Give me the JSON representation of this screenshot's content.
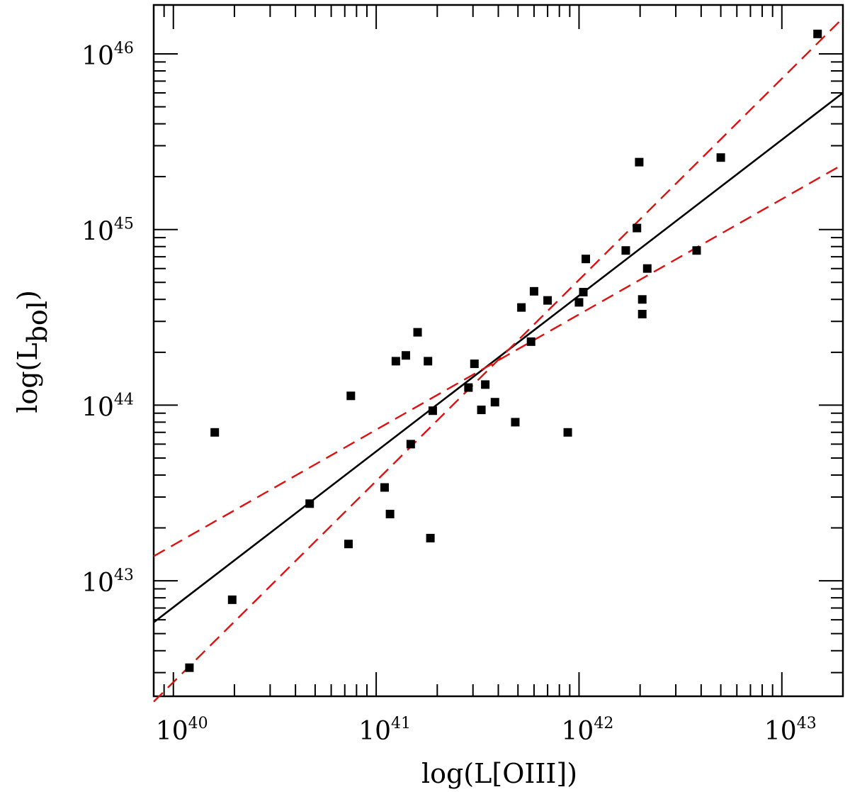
{
  "chart_data": {
    "type": "scatter",
    "title": "",
    "xlabel": "log(L[OIII])",
    "ylabel": {
      "prefix": "log(L",
      "subscript": "bol",
      "suffix": ")"
    },
    "x_scale": "log",
    "y_scale": "log",
    "xlim": [
      8e+39,
      2e+43
    ],
    "ylim": [
      2.2e+42,
      1.9e+46
    ],
    "x_ticks": [
      {
        "value": 1e+40,
        "base": "10",
        "exp": "40"
      },
      {
        "value": 1e+41,
        "base": "10",
        "exp": "41"
      },
      {
        "value": 1e+42,
        "base": "10",
        "exp": "42"
      },
      {
        "value": 1e+43,
        "base": "10",
        "exp": "43"
      }
    ],
    "y_ticks": [
      {
        "value": 1e+43,
        "base": "10",
        "exp": "43"
      },
      {
        "value": 1e+44,
        "base": "10",
        "exp": "44"
      },
      {
        "value": 1e+45,
        "base": "10",
        "exp": "45"
      },
      {
        "value": 1e+46,
        "base": "10",
        "exp": "46"
      }
    ],
    "grid": false,
    "points": [
      {
        "x": 1.2e+40,
        "y": 3.2e+42
      },
      {
        "x": 1.6e+40,
        "y": 7e+43
      },
      {
        "x": 1.95e+40,
        "y": 7.8e+42
      },
      {
        "x": 4.7e+40,
        "y": 2.75e+43
      },
      {
        "x": 7.3e+40,
        "y": 1.62e+43
      },
      {
        "x": 7.5e+40,
        "y": 1.13e+44
      },
      {
        "x": 1.1e+41,
        "y": 3.4e+43
      },
      {
        "x": 1.17e+41,
        "y": 2.4e+43
      },
      {
        "x": 1.25e+41,
        "y": 1.78e+44
      },
      {
        "x": 1.4e+41,
        "y": 1.92e+44
      },
      {
        "x": 1.48e+41,
        "y": 6e+43
      },
      {
        "x": 1.6e+41,
        "y": 2.6e+44
      },
      {
        "x": 1.8e+41,
        "y": 1.78e+44
      },
      {
        "x": 1.85e+41,
        "y": 1.75e+43
      },
      {
        "x": 1.9e+41,
        "y": 9.3e+43
      },
      {
        "x": 2.85e+41,
        "y": 1.26e+44
      },
      {
        "x": 3.05e+41,
        "y": 1.72e+44
      },
      {
        "x": 3.3e+41,
        "y": 9.4e+43
      },
      {
        "x": 3.45e+41,
        "y": 1.31e+44
      },
      {
        "x": 3.85e+41,
        "y": 1.04e+44
      },
      {
        "x": 4.85e+41,
        "y": 8e+43
      },
      {
        "x": 5.2e+41,
        "y": 3.6e+44
      },
      {
        "x": 5.8e+41,
        "y": 2.3e+44
      },
      {
        "x": 6e+41,
        "y": 4.45e+44
      },
      {
        "x": 7e+41,
        "y": 3.95e+44
      },
      {
        "x": 8.8e+41,
        "y": 7e+43
      },
      {
        "x": 1e+42,
        "y": 3.85e+44
      },
      {
        "x": 1.05e+42,
        "y": 4.4e+44
      },
      {
        "x": 1.08e+42,
        "y": 6.8e+44
      },
      {
        "x": 1.7e+42,
        "y": 7.6e+44
      },
      {
        "x": 1.93e+42,
        "y": 1.02e+45
      },
      {
        "x": 1.98e+42,
        "y": 2.42e+45
      },
      {
        "x": 2.05e+42,
        "y": 4e+44
      },
      {
        "x": 2.05e+42,
        "y": 3.3e+44
      },
      {
        "x": 2.17e+42,
        "y": 6e+44
      },
      {
        "x": 3.8e+42,
        "y": 7.6e+44
      },
      {
        "x": 5e+42,
        "y": 2.57e+45
      },
      {
        "x": 1.5e+43,
        "y": 1.3e+46
      }
    ],
    "fit_lines": [
      {
        "style": "solid",
        "color": "#000000",
        "endpoints": [
          [
            8e+39,
            5.8e+42
          ],
          [
            2e+43,
            6e+45
          ]
        ]
      },
      {
        "style": "dashed",
        "color": "#e01010",
        "endpoints": [
          [
            8e+39,
            2.05e+42
          ],
          [
            2e+43,
            1.6e+46
          ]
        ]
      },
      {
        "style": "dashed",
        "color": "#e01010",
        "endpoints": [
          [
            8e+39,
            1.38e+43
          ],
          [
            2e+43,
            2.35e+45
          ]
        ]
      }
    ]
  }
}
